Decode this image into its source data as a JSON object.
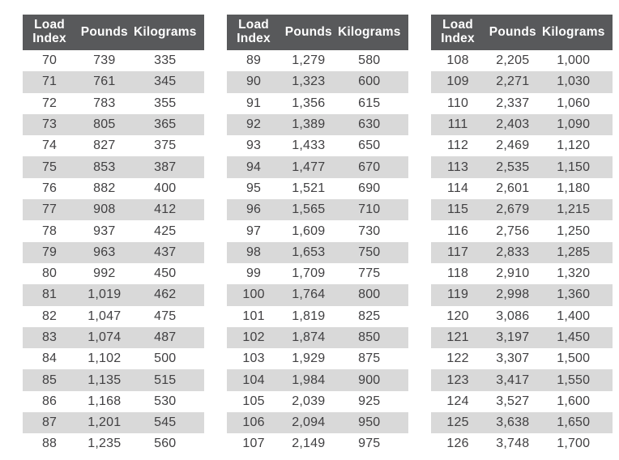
{
  "colors": {
    "header_bg": "#58595b",
    "header_text": "#ffffff",
    "stripe_bg": "#d9d9d9",
    "body_text": "#414042",
    "background": "#ffffff"
  },
  "chart_data": {
    "type": "table",
    "columns": [
      "Load Index",
      "Pounds",
      "Kilograms"
    ],
    "tables": [
      {
        "rows": [
          [
            "70",
            "739",
            "335"
          ],
          [
            "71",
            "761",
            "345"
          ],
          [
            "72",
            "783",
            "355"
          ],
          [
            "73",
            "805",
            "365"
          ],
          [
            "74",
            "827",
            "375"
          ],
          [
            "75",
            "853",
            "387"
          ],
          [
            "76",
            "882",
            "400"
          ],
          [
            "77",
            "908",
            "412"
          ],
          [
            "78",
            "937",
            "425"
          ],
          [
            "79",
            "963",
            "437"
          ],
          [
            "80",
            "992",
            "450"
          ],
          [
            "81",
            "1,019",
            "462"
          ],
          [
            "82",
            "1,047",
            "475"
          ],
          [
            "83",
            "1,074",
            "487"
          ],
          [
            "84",
            "1,102",
            "500"
          ],
          [
            "85",
            "1,135",
            "515"
          ],
          [
            "86",
            "1,168",
            "530"
          ],
          [
            "87",
            "1,201",
            "545"
          ],
          [
            "88",
            "1,235",
            "560"
          ]
        ]
      },
      {
        "rows": [
          [
            "89",
            "1,279",
            "580"
          ],
          [
            "90",
            "1,323",
            "600"
          ],
          [
            "91",
            "1,356",
            "615"
          ],
          [
            "92",
            "1,389",
            "630"
          ],
          [
            "93",
            "1,433",
            "650"
          ],
          [
            "94",
            "1,477",
            "670"
          ],
          [
            "95",
            "1,521",
            "690"
          ],
          [
            "96",
            "1,565",
            "710"
          ],
          [
            "97",
            "1,609",
            "730"
          ],
          [
            "98",
            "1,653",
            "750"
          ],
          [
            "99",
            "1,709",
            "775"
          ],
          [
            "100",
            "1,764",
            "800"
          ],
          [
            "101",
            "1,819",
            "825"
          ],
          [
            "102",
            "1,874",
            "850"
          ],
          [
            "103",
            "1,929",
            "875"
          ],
          [
            "104",
            "1,984",
            "900"
          ],
          [
            "105",
            "2,039",
            "925"
          ],
          [
            "106",
            "2,094",
            "950"
          ],
          [
            "107",
            "2,149",
            "975"
          ]
        ]
      },
      {
        "rows": [
          [
            "108",
            "2,205",
            "1,000"
          ],
          [
            "109",
            "2,271",
            "1,030"
          ],
          [
            "110",
            "2,337",
            "1,060"
          ],
          [
            "111",
            "2,403",
            "1,090"
          ],
          [
            "112",
            "2,469",
            "1,120"
          ],
          [
            "113",
            "2,535",
            "1,150"
          ],
          [
            "114",
            "2,601",
            "1,180"
          ],
          [
            "115",
            "2,679",
            "1,215"
          ],
          [
            "116",
            "2,756",
            "1,250"
          ],
          [
            "117",
            "2,833",
            "1,285"
          ],
          [
            "118",
            "2,910",
            "1,320"
          ],
          [
            "119",
            "2,998",
            "1,360"
          ],
          [
            "120",
            "3,086",
            "1,400"
          ],
          [
            "121",
            "3,197",
            "1,450"
          ],
          [
            "122",
            "3,307",
            "1,500"
          ],
          [
            "123",
            "3,417",
            "1,550"
          ],
          [
            "124",
            "3,527",
            "1,600"
          ],
          [
            "125",
            "3,638",
            "1,650"
          ],
          [
            "126",
            "3,748",
            "1,700"
          ]
        ]
      }
    ]
  }
}
